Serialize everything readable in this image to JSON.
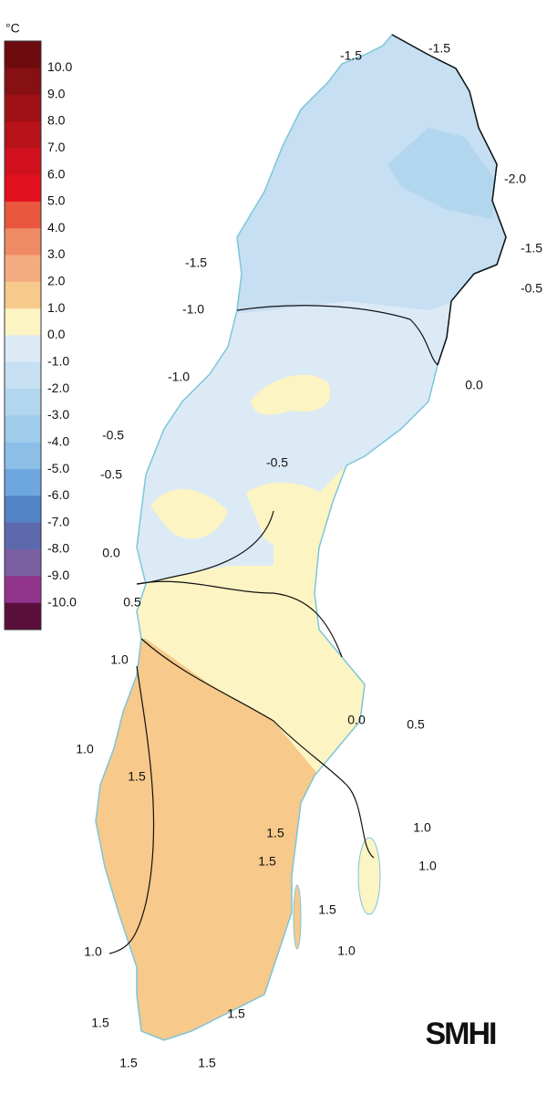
{
  "legend": {
    "unit": "°C",
    "labels": [
      "10.0",
      "9.0",
      "8.0",
      "7.0",
      "6.0",
      "5.0",
      "4.0",
      "3.0",
      "2.0",
      "1.0",
      "0.0",
      "-1.0",
      "-2.0",
      "-3.0",
      "-4.0",
      "-5.0",
      "-6.0",
      "-7.0",
      "-8.0",
      "-9.0",
      "-10.0"
    ],
    "colors": [
      "#6d0c0f",
      "#861014",
      "#a01117",
      "#b8121a",
      "#d0111d",
      "#e3101e",
      "#e8573e",
      "#ef8a66",
      "#f4ab80",
      "#f7c98a",
      "#fdf4c4",
      "#dceaf6",
      "#c7dff2",
      "#b3d6ef",
      "#a0ccec",
      "#8bbfe8",
      "#6ea7dd",
      "#5283c6",
      "#5d69ad",
      "#7a5fa3",
      "#92338c",
      "#5a0f3a"
    ]
  },
  "contour_labels": [
    "-1.5",
    "-1.5",
    "-2.0",
    "-1.5",
    "-1.5",
    "-0.5",
    "-1.0",
    "0.0",
    "-1.0",
    "-0.5",
    "-0.5",
    "-0.5",
    "0.0",
    "0.5",
    "1.0",
    "0.0",
    "0.5",
    "1.0",
    "1.5",
    "1.5",
    "1.5",
    "1.0",
    "1.0",
    "1.5",
    "1.0",
    "1.0",
    "1.5",
    "1.5",
    "1.5",
    "1.5"
  ],
  "logo": "SMHI"
}
